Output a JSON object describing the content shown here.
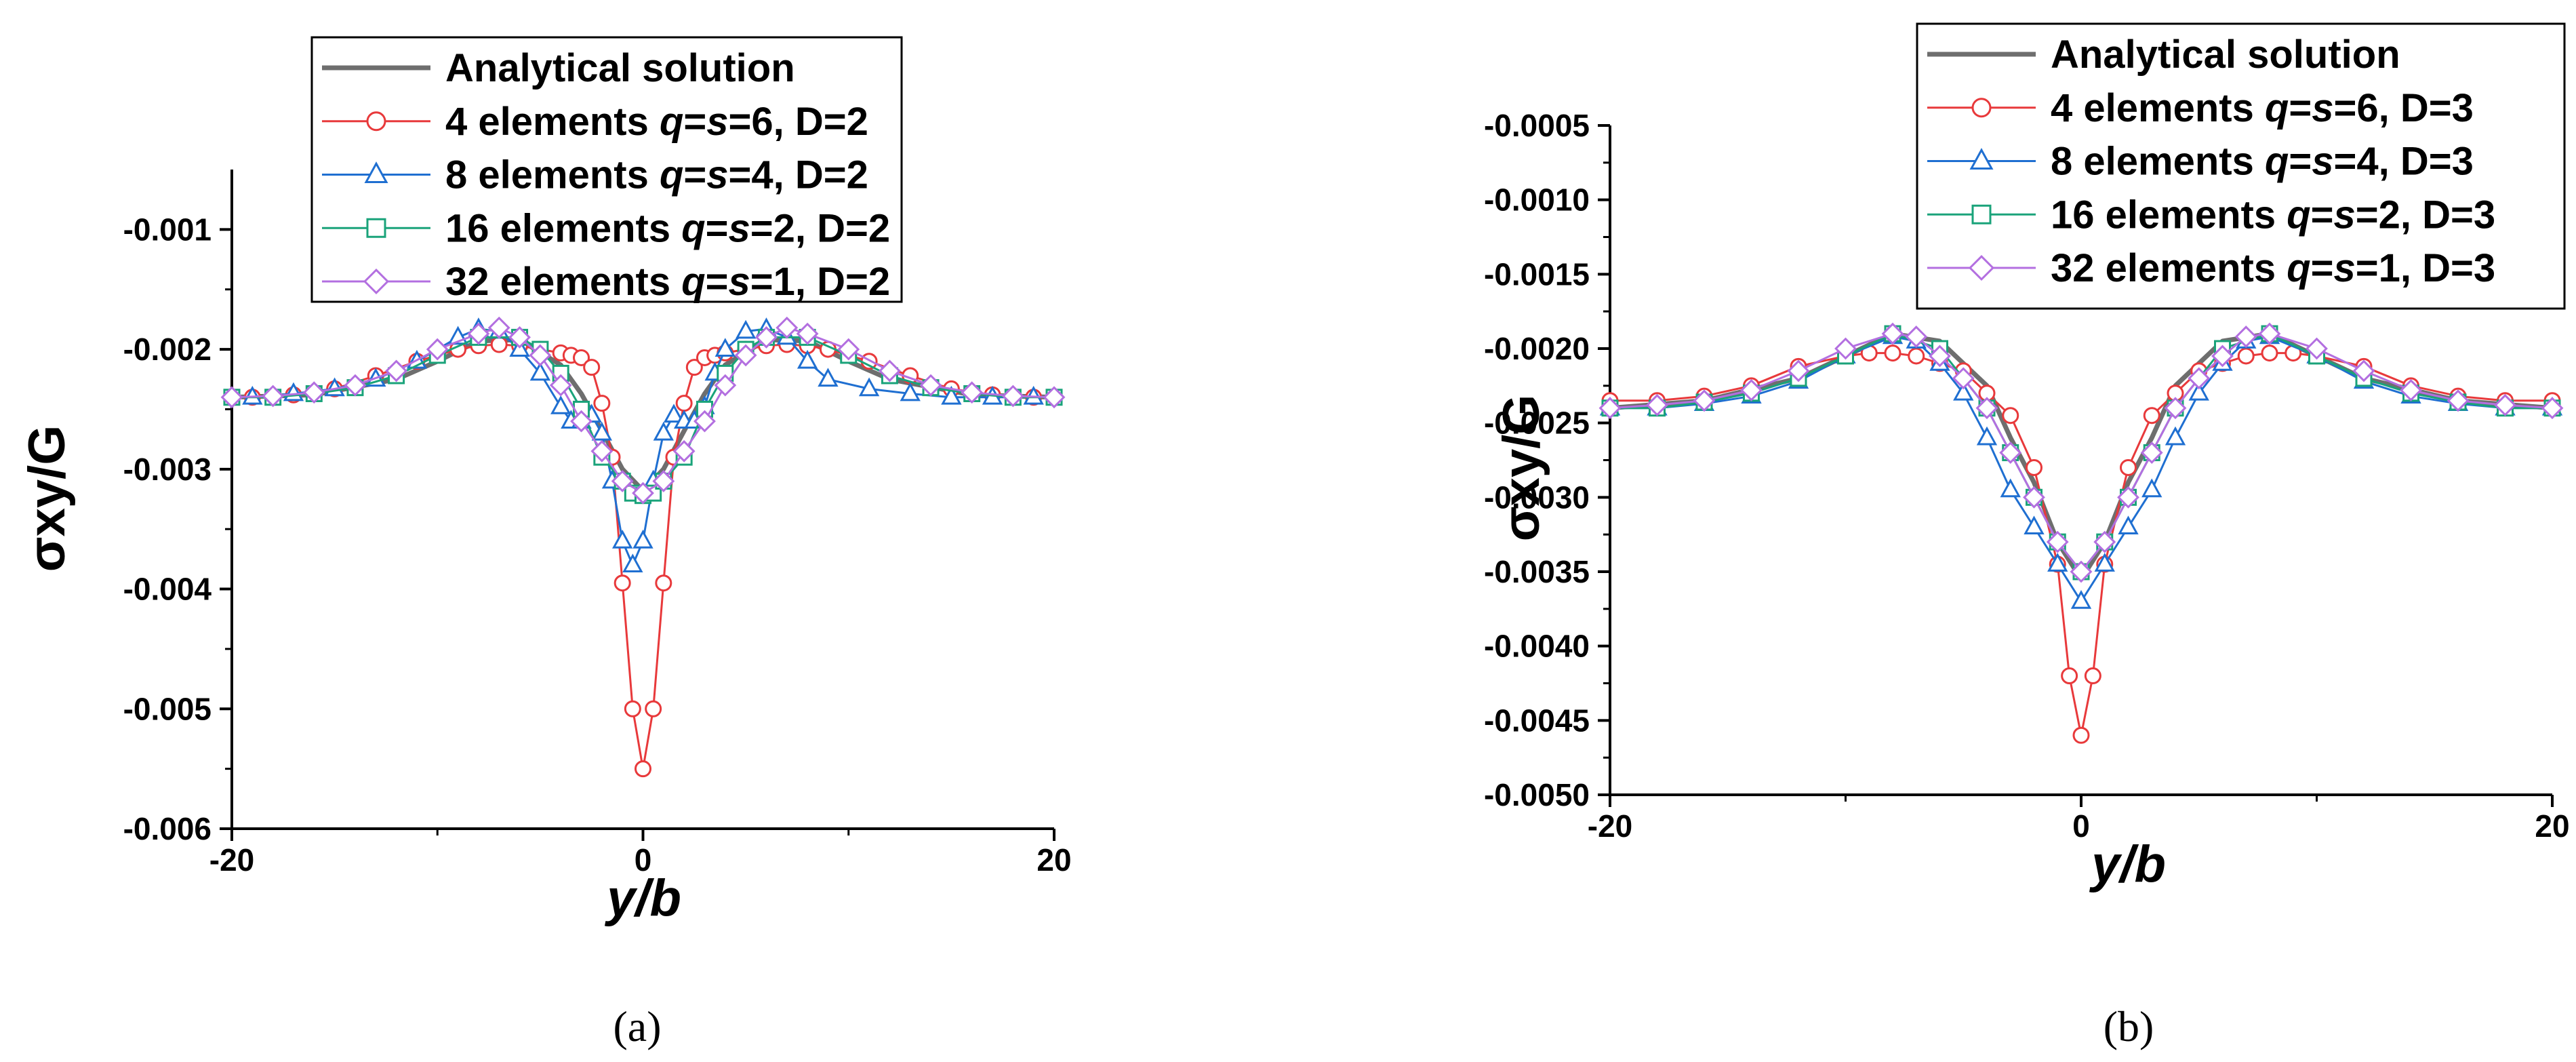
{
  "colors": {
    "analytical": "#6e6e6e",
    "four_elements": "#e8393b",
    "eight_elements": "#1f6fd1",
    "sixteen_elements": "#1aa37a",
    "thirtytwo_elements": "#b36fe0"
  },
  "chart_data": [
    {
      "type": "line",
      "caption": "(a)",
      "xlabel": "y/b",
      "ylabel": "σxy/G",
      "xlim": [
        -20,
        20
      ],
      "ylim": [
        -0.006,
        -0.0005
      ],
      "x_ticks": [
        "-20",
        "0",
        "20"
      ],
      "x_tick_values": [
        -20,
        0,
        20
      ],
      "y_ticks": [
        "-0.001",
        "-0.002",
        "-0.003",
        "-0.004",
        "-0.005",
        "-0.006"
      ],
      "y_tick_values": [
        -0.001,
        -0.002,
        -0.003,
        -0.004,
        -0.005,
        -0.006
      ],
      "legend_position": "top-center",
      "legend": [
        {
          "key": "analytical",
          "marker": "none",
          "parts": [
            {
              "t": "Analytical solution",
              "i": false
            }
          ]
        },
        {
          "key": "four_elements",
          "marker": "circle",
          "parts": [
            {
              "t": "4 elements ",
              "i": false
            },
            {
              "t": "q",
              "i": true
            },
            {
              "t": "=",
              "i": false
            },
            {
              "t": "s",
              "i": true
            },
            {
              "t": "=6, D=2",
              "i": false
            }
          ]
        },
        {
          "key": "eight_elements",
          "marker": "triangle",
          "parts": [
            {
              "t": "8 elements ",
              "i": false
            },
            {
              "t": "q",
              "i": true
            },
            {
              "t": "=",
              "i": false
            },
            {
              "t": "s",
              "i": true
            },
            {
              "t": "=4, D=2",
              "i": false
            }
          ]
        },
        {
          "key": "sixteen_elements",
          "marker": "square",
          "parts": [
            {
              "t": "16 elements ",
              "i": false
            },
            {
              "t": "q",
              "i": true
            },
            {
              "t": "=",
              "i": false
            },
            {
              "t": "s",
              "i": true
            },
            {
              "t": "=2, D=2",
              "i": false
            }
          ]
        },
        {
          "key": "thirtytwo_elements",
          "marker": "diamond",
          "parts": [
            {
              "t": "32 elements ",
              "i": false
            },
            {
              "t": "q",
              "i": true
            },
            {
              "t": "=",
              "i": false
            },
            {
              "t": "s",
              "i": true
            },
            {
              "t": "=1, D=2",
              "i": false
            }
          ]
        }
      ],
      "series": [
        {
          "key": "analytical",
          "marker": "none",
          "x": [
            -20,
            -16,
            -12,
            -10,
            -8,
            -6,
            -4,
            -3,
            -2,
            -1,
            0,
            1,
            2,
            3,
            4,
            6,
            8,
            10,
            12,
            16,
            20
          ],
          "y": [
            -0.0024,
            -0.00238,
            -0.00225,
            -0.0021,
            -0.00193,
            -0.00192,
            -0.00213,
            -0.00237,
            -0.00268,
            -0.003,
            -0.00318,
            -0.003,
            -0.00268,
            -0.00237,
            -0.00213,
            -0.00192,
            -0.00193,
            -0.0021,
            -0.00225,
            -0.00238,
            -0.0024
          ]
        },
        {
          "key": "four_elements",
          "marker": "circle",
          "x": [
            -19,
            -17,
            -15,
            -13,
            -11,
            -9,
            -8,
            -7,
            -6,
            -5,
            -4,
            -3.5,
            -3,
            -2.5,
            -2,
            -1.5,
            -1,
            -0.5,
            0,
            0.5,
            1,
            1.5,
            2,
            2.5,
            3,
            3.5,
            4,
            5,
            6,
            7,
            8,
            9,
            11,
            13,
            15,
            17,
            19
          ],
          "y": [
            -0.0024,
            -0.00238,
            -0.00233,
            -0.00222,
            -0.0021,
            -0.002,
            -0.00197,
            -0.00196,
            -0.00197,
            -0.002,
            -0.00203,
            -0.00205,
            -0.00207,
            -0.00215,
            -0.00245,
            -0.0029,
            -0.00395,
            -0.005,
            -0.0055,
            -0.005,
            -0.00395,
            -0.0029,
            -0.00245,
            -0.00215,
            -0.00207,
            -0.00205,
            -0.00203,
            -0.002,
            -0.00197,
            -0.00196,
            -0.00197,
            -0.002,
            -0.0021,
            -0.00222,
            -0.00233,
            -0.00238,
            -0.0024
          ]
        },
        {
          "key": "eight_elements",
          "marker": "triangle",
          "x": [
            -19,
            -17,
            -15,
            -13,
            -11,
            -9,
            -8,
            -7,
            -6,
            -5,
            -4,
            -3.5,
            -3,
            -2.5,
            -2,
            -1.5,
            -1,
            -0.5,
            0,
            0.5,
            1,
            1.5,
            2,
            2.5,
            3,
            3.5,
            4,
            5,
            6,
            7,
            8,
            9,
            11,
            13,
            15,
            17,
            19
          ],
          "y": [
            -0.0024,
            -0.00237,
            -0.00233,
            -0.00225,
            -0.0021,
            -0.0019,
            -0.00183,
            -0.00185,
            -0.002,
            -0.0022,
            -0.00248,
            -0.0026,
            -0.0026,
            -0.00255,
            -0.0027,
            -0.0031,
            -0.0036,
            -0.0038,
            -0.0036,
            -0.0031,
            -0.0027,
            -0.00255,
            -0.0026,
            -0.0026,
            -0.00248,
            -0.0022,
            -0.002,
            -0.00185,
            -0.00183,
            -0.0019,
            -0.0021,
            -0.00225,
            -0.00233,
            -0.00237,
            -0.0024,
            -0.0024,
            -0.0024
          ]
        },
        {
          "key": "sixteen_elements",
          "marker": "square",
          "x": [
            -20,
            -18,
            -16,
            -14,
            -12,
            -10,
            -8,
            -6,
            -5,
            -4,
            -3,
            -2,
            -1,
            -0.5,
            0,
            0.5,
            1,
            2,
            3,
            4,
            5,
            6,
            8,
            10,
            12,
            14,
            16,
            18,
            20
          ],
          "y": [
            -0.0024,
            -0.0024,
            -0.00237,
            -0.00232,
            -0.00222,
            -0.00205,
            -0.0019,
            -0.0019,
            -0.002,
            -0.0022,
            -0.0025,
            -0.0029,
            -0.0031,
            -0.0032,
            -0.00322,
            -0.0032,
            -0.0031,
            -0.0029,
            -0.0025,
            -0.0022,
            -0.002,
            -0.0019,
            -0.0019,
            -0.00205,
            -0.00222,
            -0.00232,
            -0.00237,
            -0.0024,
            -0.0024
          ]
        },
        {
          "key": "thirtytwo_elements",
          "marker": "diamond",
          "x": [
            -20,
            -18,
            -16,
            -14,
            -12,
            -10,
            -8,
            -7,
            -6,
            -5,
            -4,
            -3,
            -2,
            -1,
            0,
            1,
            2,
            3,
            4,
            5,
            6,
            7,
            8,
            10,
            12,
            14,
            16,
            18,
            20
          ],
          "y": [
            -0.0024,
            -0.00239,
            -0.00236,
            -0.0023,
            -0.00218,
            -0.002,
            -0.00187,
            -0.00182,
            -0.0019,
            -0.00205,
            -0.0023,
            -0.0026,
            -0.00285,
            -0.0031,
            -0.0032,
            -0.0031,
            -0.00285,
            -0.0026,
            -0.0023,
            -0.00205,
            -0.0019,
            -0.00182,
            -0.00187,
            -0.002,
            -0.00218,
            -0.0023,
            -0.00236,
            -0.00239,
            -0.0024
          ]
        }
      ]
    },
    {
      "type": "line",
      "caption": "(b)",
      "xlabel": "y/b",
      "ylabel": "σxy/G",
      "xlim": [
        -20,
        20
      ],
      "ylim": [
        -0.005,
        -0.0005
      ],
      "x_ticks": [
        "-20",
        "0",
        "20"
      ],
      "x_tick_values": [
        -20,
        0,
        20
      ],
      "y_ticks": [
        "-0.0005",
        "-0.0010",
        "-0.0015",
        "-0.0020",
        "-0.0025",
        "-0.0030",
        "-0.0035",
        "-0.0040",
        "-0.0045",
        "-0.0050"
      ],
      "y_tick_values": [
        -0.0005,
        -0.001,
        -0.0015,
        -0.002,
        -0.0025,
        -0.003,
        -0.0035,
        -0.004,
        -0.0045,
        -0.005
      ],
      "legend_position": "top-center",
      "legend": [
        {
          "key": "analytical",
          "marker": "none",
          "parts": [
            {
              "t": "Analytical solution",
              "i": false
            }
          ]
        },
        {
          "key": "four_elements",
          "marker": "circle",
          "parts": [
            {
              "t": "4 elements ",
              "i": false
            },
            {
              "t": "q",
              "i": true
            },
            {
              "t": "=",
              "i": false
            },
            {
              "t": "s",
              "i": true
            },
            {
              "t": "=6, D=3",
              "i": false
            }
          ]
        },
        {
          "key": "eight_elements",
          "marker": "triangle",
          "parts": [
            {
              "t": "8 elements ",
              "i": false
            },
            {
              "t": "q",
              "i": true
            },
            {
              "t": "=",
              "i": false
            },
            {
              "t": "s",
              "i": true
            },
            {
              "t": "=4, D=3",
              "i": false
            }
          ]
        },
        {
          "key": "sixteen_elements",
          "marker": "square",
          "parts": [
            {
              "t": "16 elements ",
              "i": false
            },
            {
              "t": "q",
              "i": true
            },
            {
              "t": "=",
              "i": false
            },
            {
              "t": "s",
              "i": true
            },
            {
              "t": "=2, D=3",
              "i": false
            }
          ]
        },
        {
          "key": "thirtytwo_elements",
          "marker": "diamond",
          "parts": [
            {
              "t": "32 elements ",
              "i": false
            },
            {
              "t": "q",
              "i": true
            },
            {
              "t": "=",
              "i": false
            },
            {
              "t": "s",
              "i": true
            },
            {
              "t": "=1, D=3",
              "i": false
            }
          ]
        }
      ],
      "series": [
        {
          "key": "analytical",
          "marker": "none",
          "x": [
            -20,
            -16,
            -12,
            -10,
            -8,
            -6,
            -4,
            -3,
            -2,
            -1,
            0,
            1,
            2,
            3,
            4,
            6,
            8,
            10,
            12,
            16,
            20
          ],
          "y": [
            -0.0024,
            -0.00235,
            -0.0022,
            -0.00205,
            -0.0019,
            -0.00195,
            -0.00225,
            -0.0026,
            -0.0029,
            -0.0033,
            -0.00355,
            -0.0033,
            -0.0029,
            -0.0026,
            -0.00225,
            -0.00195,
            -0.0019,
            -0.00205,
            -0.0022,
            -0.00235,
            -0.0024
          ]
        },
        {
          "key": "four_elements",
          "marker": "circle",
          "x": [
            -20,
            -18,
            -16,
            -14,
            -12,
            -10,
            -9,
            -8,
            -7,
            -6,
            -5,
            -4,
            -3,
            -2,
            -1,
            -0.5,
            0,
            0.5,
            1,
            2,
            3,
            4,
            5,
            6,
            7,
            8,
            9,
            10,
            12,
            14,
            16,
            18,
            20
          ],
          "y": [
            -0.00235,
            -0.00235,
            -0.00232,
            -0.00225,
            -0.00212,
            -0.00205,
            -0.00203,
            -0.00203,
            -0.00205,
            -0.0021,
            -0.00215,
            -0.0023,
            -0.00245,
            -0.0028,
            -0.00345,
            -0.0042,
            -0.0046,
            -0.0042,
            -0.00345,
            -0.0028,
            -0.00245,
            -0.0023,
            -0.00215,
            -0.0021,
            -0.00205,
            -0.00203,
            -0.00203,
            -0.00205,
            -0.00212,
            -0.00225,
            -0.00232,
            -0.00235,
            -0.00235
          ]
        },
        {
          "key": "eight_elements",
          "marker": "triangle",
          "x": [
            -20,
            -18,
            -16,
            -14,
            -12,
            -10,
            -8,
            -7,
            -6,
            -5,
            -4,
            -3,
            -2,
            -1,
            0,
            1,
            2,
            3,
            4,
            5,
            6,
            7,
            8,
            10,
            12,
            14,
            16,
            18,
            20
          ],
          "y": [
            -0.0024,
            -0.0024,
            -0.00237,
            -0.00232,
            -0.00222,
            -0.00205,
            -0.00192,
            -0.00195,
            -0.0021,
            -0.0023,
            -0.0026,
            -0.00295,
            -0.0032,
            -0.00345,
            -0.0037,
            -0.00345,
            -0.0032,
            -0.00295,
            -0.0026,
            -0.0023,
            -0.0021,
            -0.00195,
            -0.00192,
            -0.00205,
            -0.00222,
            -0.00232,
            -0.00237,
            -0.0024,
            -0.0024
          ]
        },
        {
          "key": "sixteen_elements",
          "marker": "square",
          "x": [
            -20,
            -18,
            -16,
            -14,
            -12,
            -10,
            -8,
            -6,
            -4,
            -3,
            -2,
            -1,
            0,
            1,
            2,
            3,
            4,
            6,
            8,
            10,
            12,
            14,
            16,
            18,
            20
          ],
          "y": [
            -0.0024,
            -0.0024,
            -0.00236,
            -0.0023,
            -0.0022,
            -0.00205,
            -0.0019,
            -0.002,
            -0.0024,
            -0.0027,
            -0.003,
            -0.0033,
            -0.0035,
            -0.0033,
            -0.003,
            -0.0027,
            -0.0024,
            -0.002,
            -0.0019,
            -0.00205,
            -0.0022,
            -0.0023,
            -0.00236,
            -0.0024,
            -0.0024
          ]
        },
        {
          "key": "thirtytwo_elements",
          "marker": "diamond",
          "x": [
            -20,
            -18,
            -16,
            -14,
            -12,
            -10,
            -8,
            -7,
            -6,
            -5,
            -4,
            -3,
            -2,
            -1,
            0,
            1,
            2,
            3,
            4,
            5,
            6,
            7,
            8,
            10,
            12,
            14,
            16,
            18,
            20
          ],
          "y": [
            -0.0024,
            -0.00238,
            -0.00235,
            -0.00228,
            -0.00215,
            -0.002,
            -0.0019,
            -0.00192,
            -0.00205,
            -0.0022,
            -0.0024,
            -0.0027,
            -0.003,
            -0.0033,
            -0.0035,
            -0.0033,
            -0.003,
            -0.0027,
            -0.0024,
            -0.0022,
            -0.00205,
            -0.00192,
            -0.0019,
            -0.002,
            -0.00215,
            -0.00228,
            -0.00235,
            -0.00238,
            -0.0024
          ]
        }
      ]
    }
  ]
}
